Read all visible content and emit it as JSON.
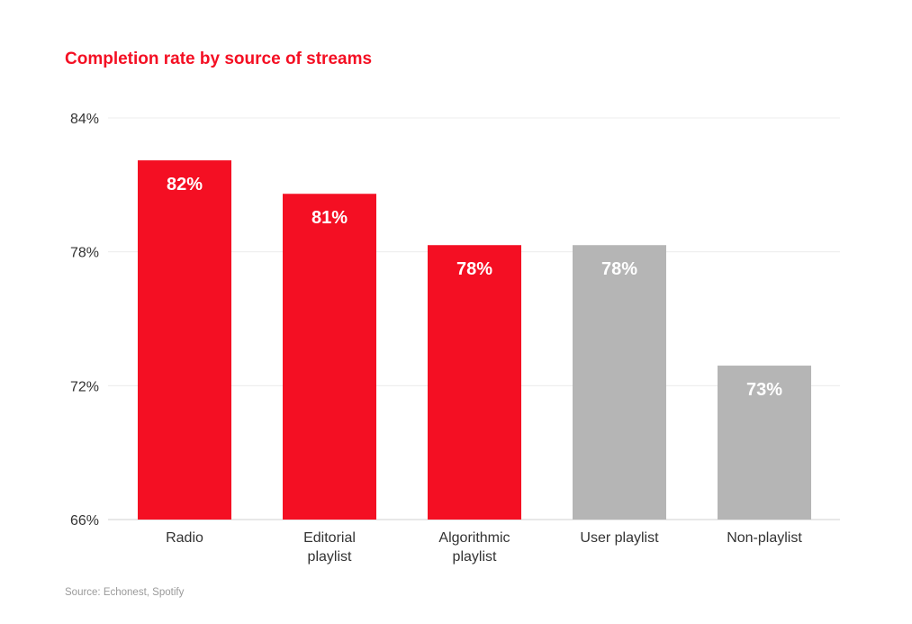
{
  "chart_data": {
    "type": "bar",
    "title": "Completion rate by source of streams",
    "xlabel": "",
    "ylabel": "",
    "ylim": [
      66,
      84
    ],
    "yticks": [
      84,
      78,
      72,
      66
    ],
    "ytick_labels": [
      "84%",
      "78%",
      "72%",
      "66%"
    ],
    "grid": true,
    "categories": [
      [
        "Radio"
      ],
      [
        "Editorial",
        "playlist"
      ],
      [
        "Algorithmic",
        "playlist"
      ],
      [
        "User playlist"
      ],
      [
        "Non-playlist"
      ]
    ],
    "values": [
      82.1,
      80.6,
      78.3,
      78.3,
      72.9
    ],
    "data_labels": [
      "82%",
      "81%",
      "78%",
      "78%",
      "73%"
    ],
    "bar_colors": [
      "#f40f23",
      "#f40f23",
      "#f40f23",
      "#b5b5b5",
      "#b5b5b5"
    ],
    "source": "Source: Echonest, Spotify"
  }
}
